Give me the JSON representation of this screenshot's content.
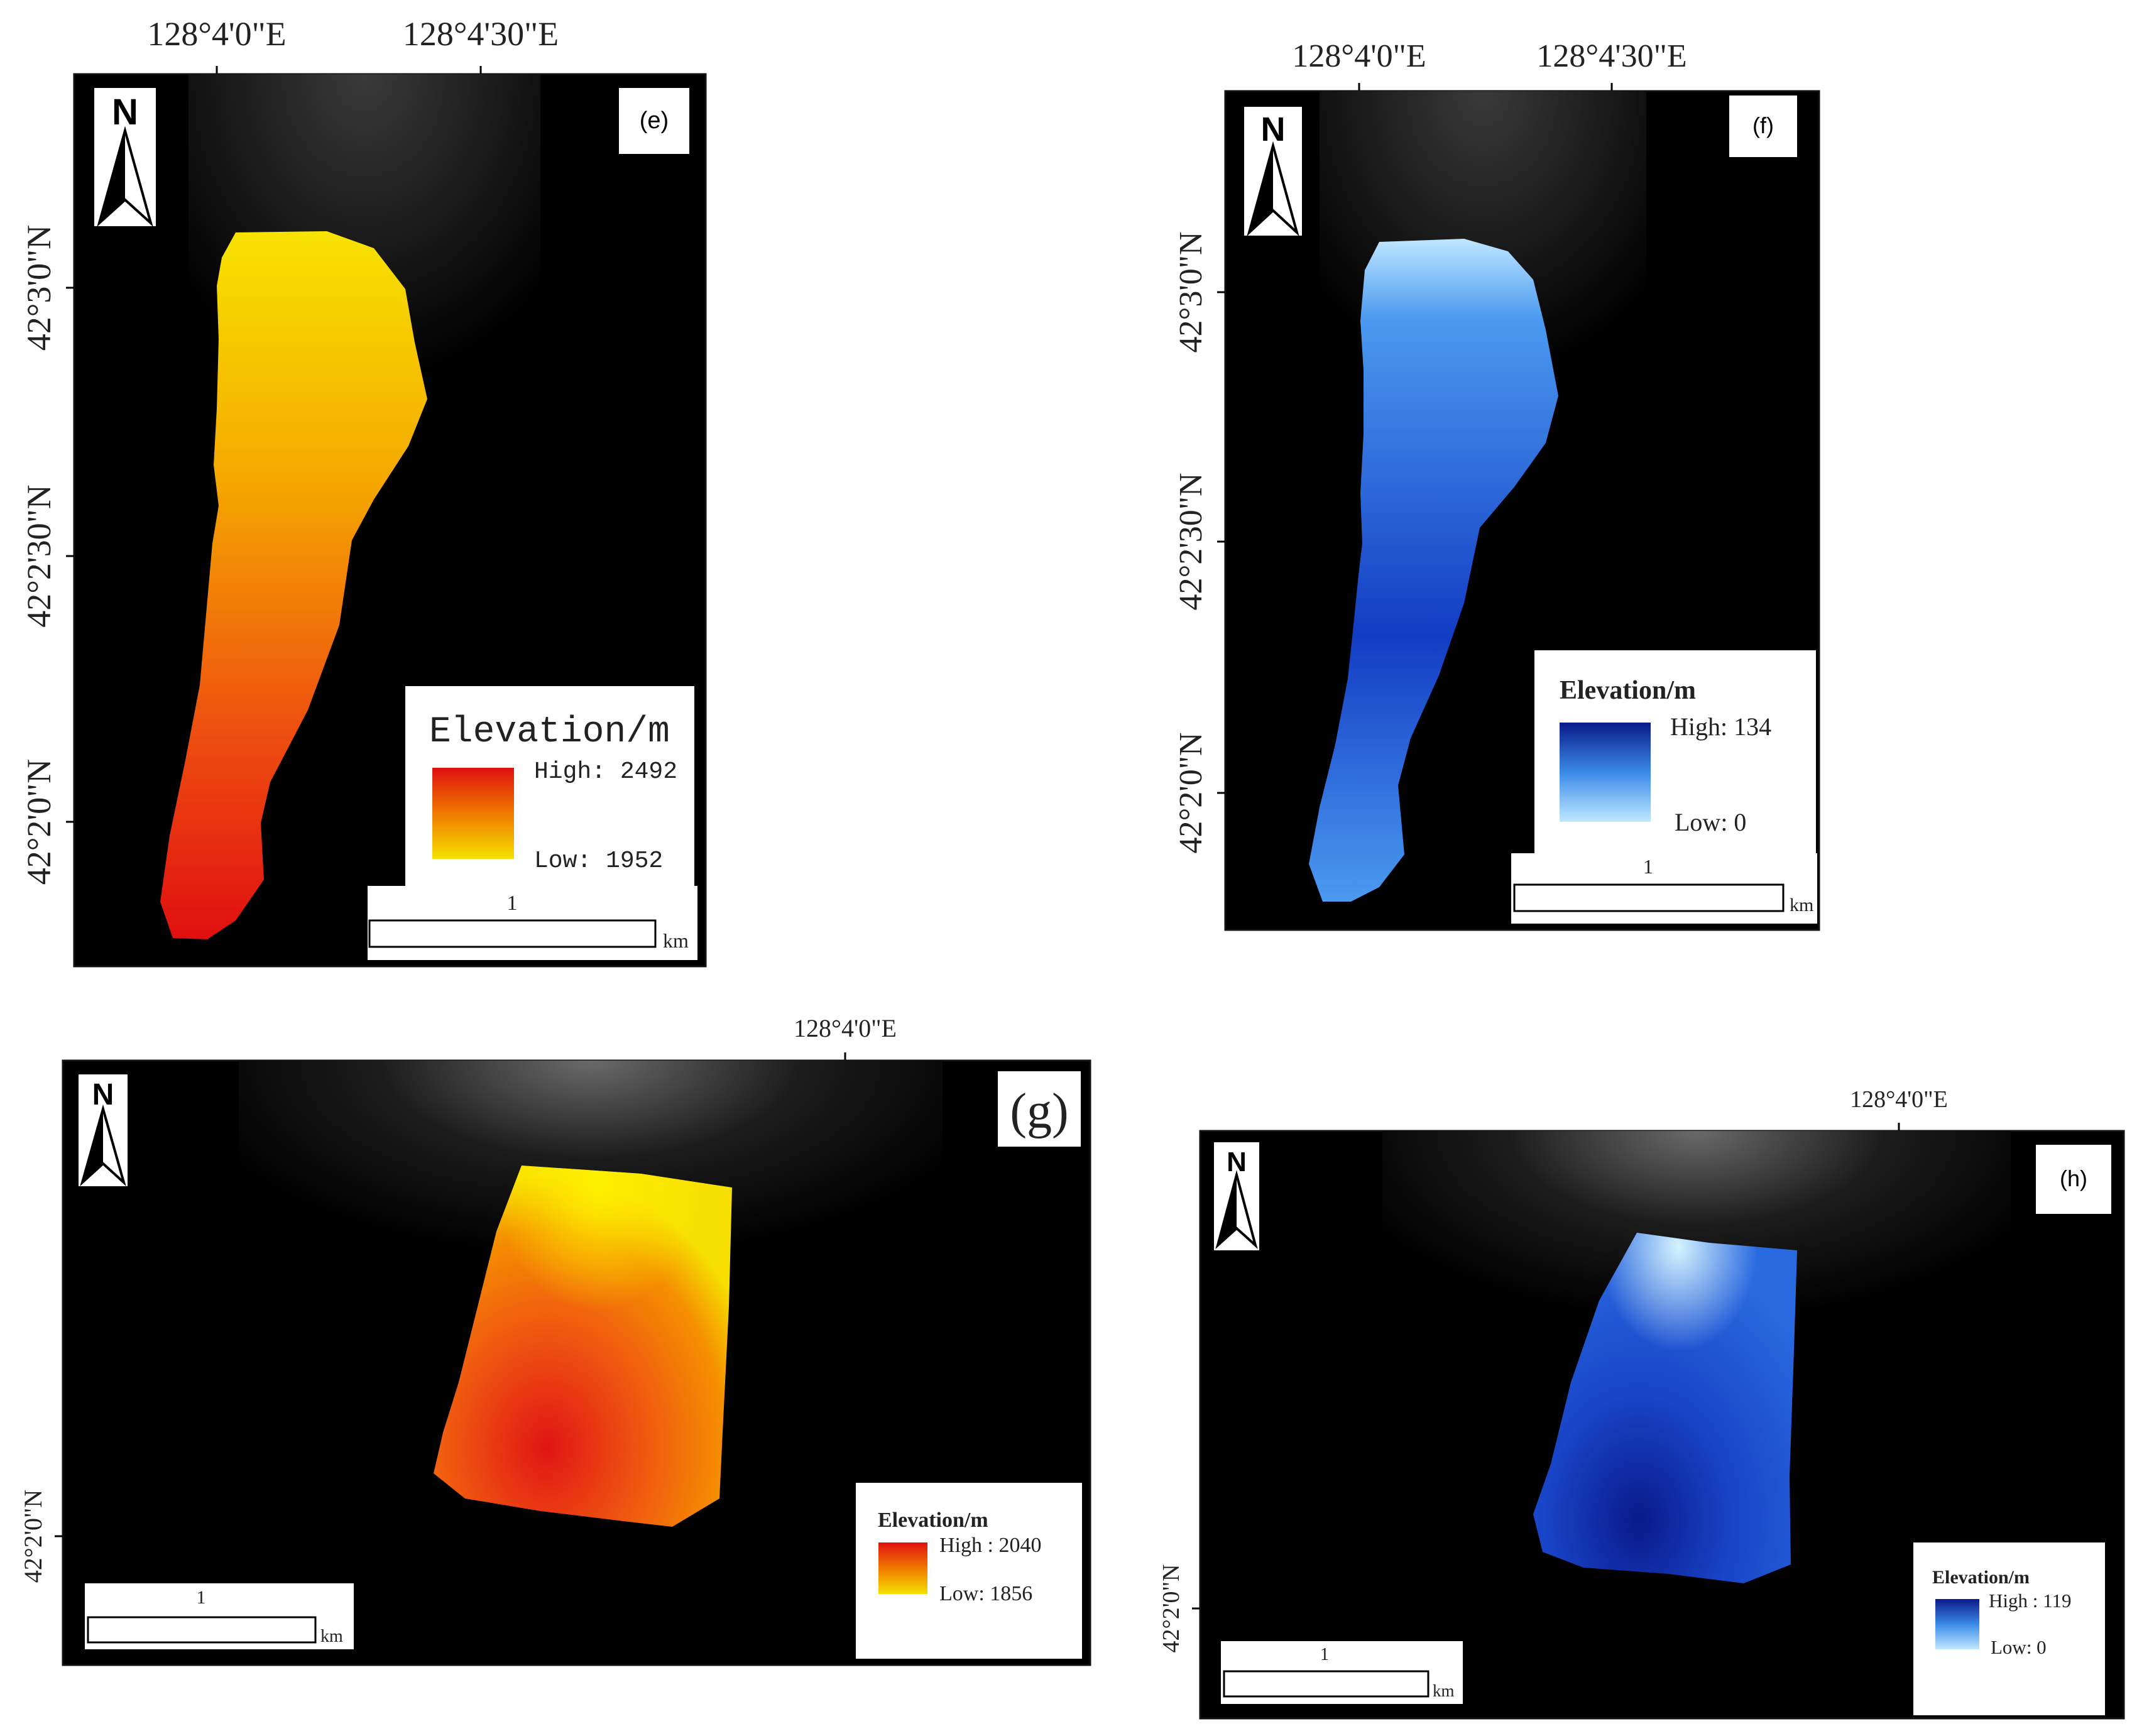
{
  "panels": {
    "e": {
      "label": "(e)",
      "lon_ticks": [
        "128°4'0\"E",
        "128°4'30\"E"
      ],
      "lat_ticks": [
        "42°3'0\"N",
        "42°2'30\"N",
        "42°2'0\"N"
      ],
      "north": "N",
      "legend": {
        "title": "Elevation/m",
        "high": "High: 2492",
        "low": "Low: 1952",
        "high_color": "#e01010",
        "low_color": "#f5e000"
      },
      "scale": {
        "value": "1",
        "unit": "km"
      }
    },
    "f": {
      "label": "(f)",
      "lon_ticks": [
        "128°4'0\"E",
        "128°4'30\"E"
      ],
      "lat_ticks": [
        "42°3'0\"N",
        "42°2'30\"N",
        "42°2'0\"N"
      ],
      "north": "N",
      "legend": {
        "title": "Elevation/m",
        "high": "High: 134",
        "low": "Low: 0",
        "high_color": "#0a1a8a",
        "low_color": "#bfe8ff"
      },
      "scale": {
        "value": "1",
        "unit": "km"
      }
    },
    "g": {
      "label": "(g)",
      "lon_ticks": [
        "128°4'0\"E"
      ],
      "lat_ticks": [
        "42°2'0\"N"
      ],
      "north": "N",
      "legend": {
        "title": "Elevation/m",
        "high": "High : 2040",
        "low": "Low: 1856",
        "high_color": "#e01010",
        "low_color": "#f5e000"
      },
      "scale": {
        "value": "1",
        "unit": "km"
      }
    },
    "h": {
      "label": "(h)",
      "lon_ticks": [
        "128°4'0\"E"
      ],
      "lat_ticks": [
        "42°2'0\"N"
      ],
      "north": "N",
      "legend": {
        "title": "Elevation/m",
        "high": "High : 119",
        "low": "Low: 0",
        "high_color": "#0a1a8a",
        "low_color": "#bfe8ff"
      },
      "scale": {
        "value": "1",
        "unit": "km"
      }
    }
  }
}
